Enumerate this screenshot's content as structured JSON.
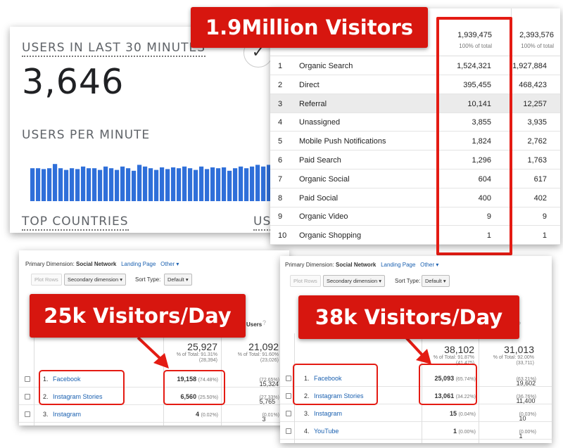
{
  "realtime": {
    "users_heading": "USERS IN LAST 30 MINUTES",
    "users_count": "3,646",
    "per_minute_heading": "USERS PER MINUTE",
    "top_countries_heading": "TOP COUNTRIES",
    "right_col_heading_partial": "USE",
    "check_icon": "check-circle-icon",
    "bar_color": "#2f6fd9",
    "bar_series": [
      0.78,
      0.78,
      0.76,
      0.78,
      0.88,
      0.78,
      0.74,
      0.78,
      0.76,
      0.82,
      0.78,
      0.78,
      0.74,
      0.82,
      0.78,
      0.74,
      0.82,
      0.78,
      0.72,
      0.86,
      0.82,
      0.78,
      0.74,
      0.8,
      0.76,
      0.8,
      0.78,
      0.82,
      0.78,
      0.74,
      0.82,
      0.76,
      0.8,
      0.78,
      0.8,
      0.72,
      0.78,
      0.82,
      0.78,
      0.82,
      0.86,
      0.82,
      0.86,
      0.82,
      0.86
    ]
  },
  "banners": {
    "million": "1.9Million Visitors",
    "day25": "25k Visitors/Day",
    "day38": "38k Visitors/Day"
  },
  "channels": {
    "totals": [
      {
        "value": "1,939,475",
        "sub": "100% of total"
      },
      {
        "value": "2,393,576",
        "sub": "100% of total"
      }
    ],
    "rows": [
      {
        "rank": "1",
        "name": "Organic Search",
        "a": "1,524,321",
        "b": "1,927,884"
      },
      {
        "rank": "2",
        "name": "Direct",
        "a": "395,455",
        "b": "468,423"
      },
      {
        "rank": "3",
        "name": "Referral",
        "a": "10,141",
        "b": "12,257"
      },
      {
        "rank": "4",
        "name": "Unassigned",
        "a": "3,855",
        "b": "3,935"
      },
      {
        "rank": "5",
        "name": "Mobile Push Notifications",
        "a": "1,824",
        "b": "2,762"
      },
      {
        "rank": "6",
        "name": "Paid Search",
        "a": "1,296",
        "b": "1,763"
      },
      {
        "rank": "7",
        "name": "Organic Social",
        "a": "604",
        "b": "617"
      },
      {
        "rank": "8",
        "name": "Paid Social",
        "a": "400",
        "b": "402"
      },
      {
        "rank": "9",
        "name": "Organic Video",
        "a": "9",
        "b": "9"
      },
      {
        "rank": "10",
        "name": "Organic Shopping",
        "a": "1",
        "b": "1"
      }
    ]
  },
  "social_left": {
    "primary_dimension_label": "Primary Dimension:",
    "primary_dimension_value": "Social Network",
    "landing_page": "Landing Page",
    "other": "Other",
    "plot_rows": "Plot Rows",
    "secondary_dimension": "Secondary dimension",
    "sort_type_label": "Sort Type:",
    "sort_type_value": "Default",
    "col_header": "Users",
    "totals": [
      {
        "value": "25,927",
        "sub1": "% of Total: 91.31%",
        "sub2": "(28,394)"
      },
      {
        "value": "21,092",
        "sub1": "% of Total: 91.60%",
        "sub2": "(23,026)"
      }
    ],
    "rows": [
      {
        "rank": "1.",
        "name": "Facebook",
        "a": "19,158",
        "a_pct": "(74.48%)",
        "b": "15,324",
        "b_pct": "(72.65%)"
      },
      {
        "rank": "2.",
        "name": "Instagram Stories",
        "a": "6,560",
        "a_pct": "(25.50%)",
        "b": "5,765",
        "b_pct": "(27.33%)"
      },
      {
        "rank": "3.",
        "name": "Instagram",
        "a": "4",
        "a_pct": "(0.02%)",
        "b": "3",
        "b_pct": "(0.01%)"
      }
    ]
  },
  "social_right": {
    "primary_dimension_label": "Primary Dimension:",
    "primary_dimension_value": "Social Network",
    "landing_page": "Landing Page",
    "other": "Other",
    "plot_rows": "Plot Rows",
    "secondary_dimension": "Secondary dimension",
    "sort_type_label": "Sort Type:",
    "sort_type_value": "Default",
    "totals": [
      {
        "value": "38,102",
        "sub1": "% of Total: 91.87%",
        "sub2": "(41,475)"
      },
      {
        "value": "31,013",
        "sub1": "% of Total: 92.00%",
        "sub2": "(33,711)"
      }
    ],
    "rows": [
      {
        "rank": "1.",
        "name": "Facebook",
        "a": "25,093",
        "a_pct": "(65.74%)",
        "b": "19,602",
        "b_pct": "(63.21%)"
      },
      {
        "rank": "2.",
        "name": "Instagram Stories",
        "a": "13,061",
        "a_pct": "(34.22%)",
        "b": "11,400",
        "b_pct": "(36.76%)"
      },
      {
        "rank": "3.",
        "name": "Instagram",
        "a": "15",
        "a_pct": "(0.04%)",
        "b": "10",
        "b_pct": "(0.03%)"
      },
      {
        "rank": "4.",
        "name": "YouTube",
        "a": "1",
        "a_pct": "(0.00%)",
        "b": "1",
        "b_pct": "(0.00%)"
      }
    ]
  },
  "colors": {
    "accent_red": "#d7160f",
    "link_blue": "#1a60b0",
    "bar_blue": "#2f6fd9"
  }
}
